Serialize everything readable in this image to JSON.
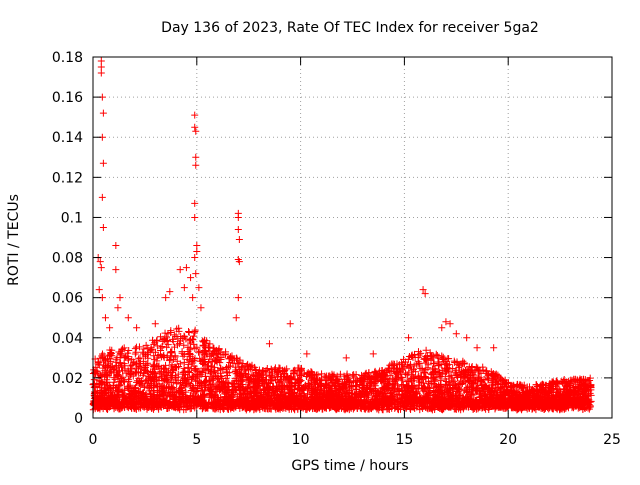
{
  "chart_data": {
    "type": "scatter",
    "title": "Day 136 of 2023, Rate Of TEC Index for receiver 5ga2",
    "xlabel": "GPS time / hours",
    "ylabel": "ROTI / TECUs",
    "xlim": [
      0,
      25
    ],
    "ylim": [
      0,
      0.18
    ],
    "grid": true,
    "xticks": [
      0,
      5,
      10,
      15,
      20,
      25
    ],
    "xtick_labels": [
      "0",
      "5",
      "10",
      "15",
      "20",
      "25"
    ],
    "yticks": [
      0,
      0.02,
      0.04,
      0.06,
      0.08,
      0.1,
      0.12,
      0.14,
      0.16,
      0.18
    ],
    "ytick_labels": [
      "0",
      "0.02",
      "0.04",
      "0.06",
      "0.08",
      "0.1",
      "0.12",
      "0.14",
      "0.16",
      "0.18"
    ],
    "marker": "+",
    "marker_color": "#ff0000",
    "background_envelope": [
      {
        "x": 0,
        "y": 0.03
      },
      {
        "x": 1,
        "y": 0.035
      },
      {
        "x": 2,
        "y": 0.035
      },
      {
        "x": 3,
        "y": 0.04
      },
      {
        "x": 4,
        "y": 0.045
      },
      {
        "x": 5,
        "y": 0.045
      },
      {
        "x": 6,
        "y": 0.035
      },
      {
        "x": 7,
        "y": 0.03
      },
      {
        "x": 8,
        "y": 0.025
      },
      {
        "x": 9,
        "y": 0.025
      },
      {
        "x": 10,
        "y": 0.025
      },
      {
        "x": 11,
        "y": 0.022
      },
      {
        "x": 12,
        "y": 0.022
      },
      {
        "x": 13,
        "y": 0.022
      },
      {
        "x": 14,
        "y": 0.025
      },
      {
        "x": 15,
        "y": 0.03
      },
      {
        "x": 16,
        "y": 0.035
      },
      {
        "x": 17,
        "y": 0.03
      },
      {
        "x": 18,
        "y": 0.028
      },
      {
        "x": 19,
        "y": 0.025
      },
      {
        "x": 20,
        "y": 0.018
      },
      {
        "x": 21,
        "y": 0.016
      },
      {
        "x": 22,
        "y": 0.018
      },
      {
        "x": 23,
        "y": 0.02
      },
      {
        "x": 24,
        "y": 0.02
      }
    ],
    "highlight_points": [
      {
        "x": 0.4,
        "y": 0.178
      },
      {
        "x": 0.4,
        "y": 0.175
      },
      {
        "x": 0.4,
        "y": 0.172
      },
      {
        "x": 0.45,
        "y": 0.16
      },
      {
        "x": 0.5,
        "y": 0.152
      },
      {
        "x": 0.45,
        "y": 0.14
      },
      {
        "x": 0.5,
        "y": 0.127
      },
      {
        "x": 0.45,
        "y": 0.11
      },
      {
        "x": 0.5,
        "y": 0.095
      },
      {
        "x": 0.25,
        "y": 0.08
      },
      {
        "x": 0.35,
        "y": 0.078
      },
      {
        "x": 0.4,
        "y": 0.075
      },
      {
        "x": 0.3,
        "y": 0.064
      },
      {
        "x": 0.45,
        "y": 0.06
      },
      {
        "x": 1.1,
        "y": 0.086
      },
      {
        "x": 1.1,
        "y": 0.074
      },
      {
        "x": 1.3,
        "y": 0.06
      },
      {
        "x": 1.2,
        "y": 0.055
      },
      {
        "x": 3.5,
        "y": 0.06
      },
      {
        "x": 3.7,
        "y": 0.063
      },
      {
        "x": 4.2,
        "y": 0.074
      },
      {
        "x": 4.5,
        "y": 0.075
      },
      {
        "x": 4.7,
        "y": 0.07
      },
      {
        "x": 4.4,
        "y": 0.065
      },
      {
        "x": 4.9,
        "y": 0.151
      },
      {
        "x": 4.9,
        "y": 0.145
      },
      {
        "x": 4.95,
        "y": 0.143
      },
      {
        "x": 4.95,
        "y": 0.13
      },
      {
        "x": 4.95,
        "y": 0.126
      },
      {
        "x": 4.9,
        "y": 0.107
      },
      {
        "x": 4.9,
        "y": 0.1
      },
      {
        "x": 5.0,
        "y": 0.086
      },
      {
        "x": 5.0,
        "y": 0.083
      },
      {
        "x": 4.9,
        "y": 0.08
      },
      {
        "x": 4.95,
        "y": 0.072
      },
      {
        "x": 5.1,
        "y": 0.065
      },
      {
        "x": 4.8,
        "y": 0.06
      },
      {
        "x": 5.2,
        "y": 0.055
      },
      {
        "x": 7.0,
        "y": 0.102
      },
      {
        "x": 7.0,
        "y": 0.1
      },
      {
        "x": 7.0,
        "y": 0.094
      },
      {
        "x": 7.05,
        "y": 0.089
      },
      {
        "x": 7.0,
        "y": 0.079
      },
      {
        "x": 7.05,
        "y": 0.078
      },
      {
        "x": 7.0,
        "y": 0.06
      },
      {
        "x": 6.9,
        "y": 0.05
      },
      {
        "x": 9.5,
        "y": 0.047
      },
      {
        "x": 15.9,
        "y": 0.064
      },
      {
        "x": 16.0,
        "y": 0.062
      },
      {
        "x": 15.2,
        "y": 0.04
      },
      {
        "x": 17.0,
        "y": 0.048
      },
      {
        "x": 17.2,
        "y": 0.047
      },
      {
        "x": 16.8,
        "y": 0.045
      },
      {
        "x": 17.5,
        "y": 0.042
      },
      {
        "x": 18.0,
        "y": 0.04
      },
      {
        "x": 18.5,
        "y": 0.035
      },
      {
        "x": 19.3,
        "y": 0.035
      },
      {
        "x": 13.5,
        "y": 0.032
      },
      {
        "x": 12.2,
        "y": 0.03
      },
      {
        "x": 10.3,
        "y": 0.032
      },
      {
        "x": 8.5,
        "y": 0.037
      },
      {
        "x": 3.0,
        "y": 0.047
      },
      {
        "x": 2.1,
        "y": 0.045
      },
      {
        "x": 1.7,
        "y": 0.05
      },
      {
        "x": 0.8,
        "y": 0.045
      },
      {
        "x": 0.6,
        "y": 0.05
      }
    ]
  }
}
